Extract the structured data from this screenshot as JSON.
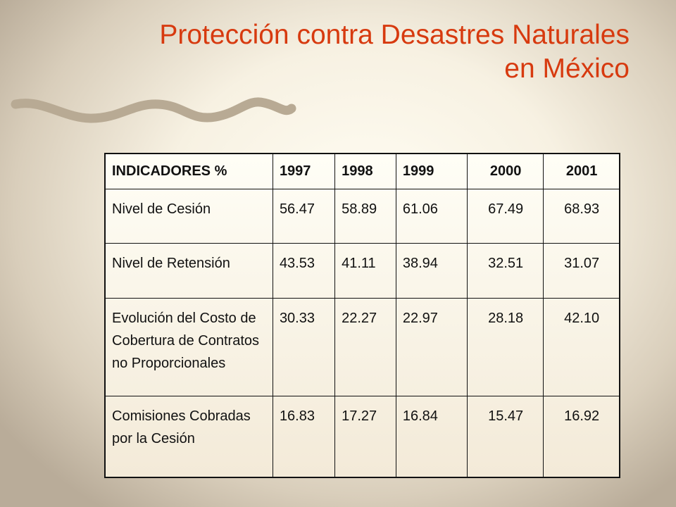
{
  "title": {
    "line1": "Protección contra Desastres Naturales",
    "line2": "en México"
  },
  "table": {
    "headers": [
      "INDICADORES %",
      "1997",
      "1998",
      "1999",
      "2000",
      "2001"
    ],
    "rows": [
      [
        "Nivel de Cesión",
        "56.47",
        "58.89",
        "61.06",
        "67.49",
        "68.93"
      ],
      [
        "Nivel de Retensión",
        "43.53",
        "41.11",
        "38.94",
        "32.51",
        "31.07"
      ],
      [
        "Evolución del Costo de Cobertura de Contratos no Proporcionales",
        "30.33",
        "22.27",
        "22.97",
        "28.18",
        "42.10"
      ],
      [
        "Comisiones Cobradas por la Cesión",
        "16.83",
        "17.27",
        "16.84",
        "15.47",
        "16.92"
      ]
    ]
  },
  "colors": {
    "title": "#d73a0f",
    "decoration": "#b8aa94"
  }
}
